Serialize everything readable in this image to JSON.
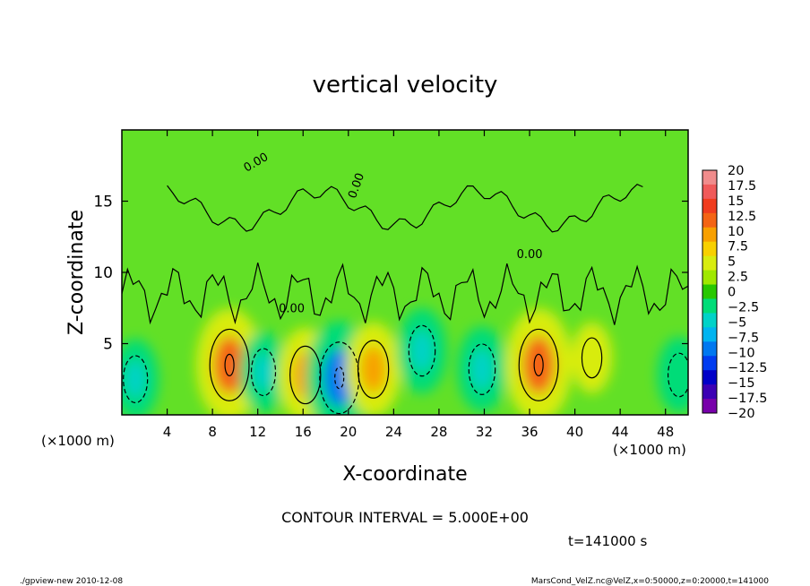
{
  "chart_data": {
    "type": "heatmap",
    "title": "vertical velocity",
    "xlabel": "X-coordinate",
    "ylabel": "Z-coordinate",
    "x_unit_left": "(×1000 m)",
    "x_unit_right": "(×1000 m)",
    "xlim": [
      0,
      50
    ],
    "ylim": [
      0,
      20
    ],
    "x_ticks": [
      4,
      8,
      12,
      16,
      20,
      24,
      28,
      32,
      36,
      40,
      44,
      48
    ],
    "y_ticks": [
      5,
      10,
      15
    ],
    "contour_interval_text": "CONTOUR INTERVAL = 5.000E+00",
    "contour_label": "0.00",
    "time_text": "t=141000 s",
    "footer_left": "./gpview-new  2010-12-08",
    "footer_right": "MarsCond_VelZ.nc@VelZ,x=0:50000,z=0:20000,t=141000",
    "colorbar": {
      "levels": [
        20,
        17.5,
        15,
        12.5,
        10,
        7.5,
        5,
        2.5,
        0,
        -2.5,
        -5,
        -7.5,
        -10,
        -12.5,
        -15,
        -17.5,
        -20
      ],
      "labels": [
        "20",
        "17.5",
        "15",
        "12.5",
        "10",
        "7.5",
        "5",
        "2.5",
        "0",
        "−2.5",
        "−5",
        "−7.5",
        "−10",
        "−12.5",
        "−15",
        "−17.5",
        "−20"
      ],
      "colors": [
        "#f08c8c",
        "#f05a5a",
        "#f03c1e",
        "#f46414",
        "#f8a000",
        "#f8d000",
        "#d8ec10",
        "#a0e800",
        "#28c800",
        "#00dc78",
        "#00d2c8",
        "#00b4f0",
        "#0078f0",
        "#003cf0",
        "#0000c8",
        "#3c00b4",
        "#7800aa"
      ]
    },
    "cells": [
      {
        "x": 1.2,
        "z": 2.5,
        "value": -5
      },
      {
        "x": 9.5,
        "z": 3.5,
        "value": 12
      },
      {
        "x": 12.5,
        "z": 3.0,
        "value": -5
      },
      {
        "x": 16.2,
        "z": 2.8,
        "value": 8
      },
      {
        "x": 19.2,
        "z": 2.6,
        "value": -12
      },
      {
        "x": 22.2,
        "z": 3.2,
        "value": 8
      },
      {
        "x": 26.5,
        "z": 4.5,
        "value": -6
      },
      {
        "x": 31.8,
        "z": 3.2,
        "value": -6
      },
      {
        "x": 36.8,
        "z": 3.5,
        "value": 12
      },
      {
        "x": 41.5,
        "z": 4.0,
        "value": 3
      },
      {
        "x": 49.2,
        "z": 2.8,
        "value": -4
      }
    ]
  }
}
